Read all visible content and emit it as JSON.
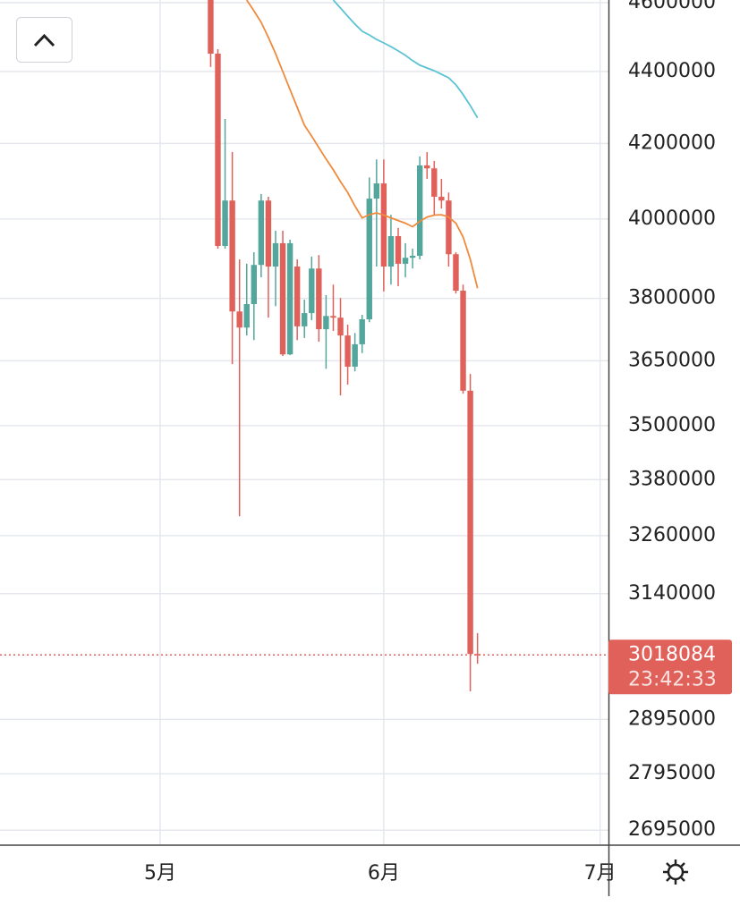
{
  "chart_data": {
    "type": "candlestick",
    "log": true,
    "grid": true,
    "ylim": [
      2669000,
      4608000
    ],
    "yticks": [
      4600000,
      4400000,
      4200000,
      4000000,
      3800000,
      3650000,
      3500000,
      3380000,
      3260000,
      3140000,
      2895000,
      2795000,
      2695000
    ],
    "categories": [
      null,
      null,
      null,
      null,
      null,
      null,
      null,
      null,
      null,
      null,
      null,
      null,
      null,
      null,
      null,
      null,
      null,
      null,
      null,
      null,
      null,
      null,
      "5月",
      null,
      null,
      null,
      null,
      null,
      null,
      null,
      null,
      null,
      null,
      null,
      null,
      null,
      null,
      null,
      null,
      null,
      null,
      null,
      null,
      null,
      null,
      null,
      null,
      null,
      null,
      null,
      null,
      null,
      null,
      "6月",
      null,
      null,
      null,
      null,
      null,
      null,
      null,
      null,
      null,
      null,
      null,
      null,
      null,
      null,
      null,
      null,
      null,
      null,
      null,
      null,
      null,
      null,
      null,
      null,
      null,
      null,
      null,
      null,
      null,
      "7月"
    ],
    "up_color": "#53a69b",
    "down_color": "#e0605a",
    "open": [
      null,
      null,
      null,
      null,
      null,
      null,
      null,
      null,
      null,
      null,
      null,
      null,
      null,
      null,
      null,
      null,
      null,
      null,
      null,
      null,
      null,
      null,
      null,
      null,
      null,
      null,
      null,
      null,
      null,
      4700000,
      4451000,
      3931000,
      4048000,
      3768000,
      3729000,
      3786000,
      3883000,
      4048000,
      3879000,
      3938000,
      3665000,
      3879000,
      3732000,
      3764000,
      3874000,
      3725000,
      3757000,
      3753000,
      3710000,
      3636000,
      3689000,
      3749000,
      4053000,
      4093000,
      3879000,
      3956000,
      3886000,
      3901000,
      3906000,
      4141000,
      4133000,
      4058000,
      4048000,
      3910000,
      3819000,
      3580000,
      3020000,
      null,
      null,
      null,
      null,
      null,
      null,
      null,
      null,
      null,
      null,
      null,
      null,
      null,
      null,
      null,
      null,
      null
    ],
    "high": [
      null,
      null,
      null,
      null,
      null,
      null,
      null,
      null,
      null,
      null,
      null,
      null,
      null,
      null,
      null,
      null,
      null,
      null,
      null,
      null,
      null,
      null,
      null,
      null,
      null,
      null,
      null,
      null,
      null,
      4760000,
      4464000,
      4267000,
      4177000,
      3897000,
      3886000,
      3915000,
      4065000,
      4058000,
      3970000,
      3970000,
      3947000,
      3897000,
      3797000,
      3904000,
      3908000,
      3808000,
      3834000,
      3801000,
      3736000,
      3716000,
      3760000,
      4109000,
      4157000,
      4157000,
      4011000,
      3977000,
      3938000,
      3924000,
      4165000,
      4177000,
      4153000,
      4105000,
      4069000,
      3915000,
      3834000,
      3619000,
      3061000,
      null,
      null,
      null,
      null,
      null,
      null,
      null,
      null,
      null,
      null,
      null,
      null,
      null,
      null,
      null,
      null,
      null
    ],
    "low": [
      null,
      null,
      null,
      null,
      null,
      null,
      null,
      null,
      null,
      null,
      null,
      null,
      null,
      null,
      null,
      null,
      null,
      null,
      null,
      null,
      null,
      null,
      null,
      null,
      null,
      null,
      null,
      null,
      null,
      4413000,
      3924000,
      3924000,
      3642000,
      3301000,
      3710000,
      3699000,
      3852000,
      3753000,
      3781000,
      3661000,
      3663000,
      3699000,
      3704000,
      3747000,
      3695000,
      3631000,
      3721000,
      3569000,
      3594000,
      3625000,
      3668000,
      3742000,
      3879000,
      3817000,
      3834000,
      3830000,
      3852000,
      3874000,
      3897000,
      4105000,
      4011000,
      4027000,
      3879000,
      3812000,
      3573000,
      2948000,
      3001000,
      null,
      null,
      null,
      null,
      null,
      null,
      null,
      null,
      null,
      null,
      null,
      null,
      null,
      null,
      null,
      null,
      null
    ],
    "close": [
      null,
      null,
      null,
      null,
      null,
      null,
      null,
      null,
      null,
      null,
      null,
      null,
      null,
      null,
      null,
      null,
      null,
      null,
      null,
      null,
      null,
      null,
      null,
      null,
      null,
      null,
      null,
      null,
      null,
      4451000,
      3931000,
      4048000,
      3768000,
      3729000,
      3786000,
      3883000,
      4048000,
      3879000,
      3938000,
      3665000,
      3938000,
      3732000,
      3764000,
      3874000,
      3725000,
      3757000,
      3753000,
      3710000,
      3636000,
      3689000,
      3749000,
      4053000,
      4093000,
      3879000,
      3956000,
      3886000,
      3901000,
      3906000,
      4141000,
      4133000,
      4058000,
      4048000,
      3910000,
      3819000,
      3580000,
      3020000,
      3018084,
      null,
      null,
      null,
      null,
      null,
      null,
      null,
      null,
      null,
      null,
      null,
      null,
      null,
      null,
      null,
      null,
      null
    ],
    "lines": [
      {
        "color": "#ef8a3c",
        "values": [
          null,
          null,
          null,
          null,
          null,
          null,
          null,
          null,
          null,
          null,
          null,
          null,
          null,
          null,
          null,
          null,
          null,
          null,
          null,
          null,
          null,
          null,
          null,
          null,
          null,
          null,
          null,
          null,
          null,
          null,
          null,
          null,
          null,
          null,
          4608000,
          4576000,
          4542000,
          4498000,
          4451000,
          4400000,
          4349000,
          4299000,
          4250000,
          4220000,
          4189000,
          4158000,
          4129000,
          4098000,
          4069000,
          4034000,
          4003000,
          4011000,
          4016000,
          4010000,
          4003000,
          3996000,
          3989000,
          3980000,
          3994000,
          4005000,
          4010000,
          4011000,
          4005000,
          3989000,
          3954000,
          3897000,
          3825000,
          null,
          null,
          null,
          null,
          null,
          null,
          null,
          null,
          null,
          null,
          null,
          null,
          null,
          null,
          null,
          null,
          null
        ]
      },
      {
        "color": "#5cc3d4",
        "values": [
          null,
          null,
          null,
          null,
          null,
          null,
          null,
          null,
          null,
          null,
          null,
          null,
          null,
          null,
          null,
          null,
          null,
          null,
          null,
          null,
          null,
          null,
          null,
          null,
          null,
          null,
          null,
          null,
          null,
          null,
          null,
          null,
          null,
          null,
          null,
          null,
          null,
          null,
          null,
          null,
          null,
          null,
          null,
          null,
          null,
          null,
          4608000,
          4584000,
          4560000,
          4537000,
          4516000,
          4505000,
          4492000,
          4482000,
          4471000,
          4459000,
          4446000,
          4431000,
          4418000,
          4410000,
          4402000,
          4392000,
          4382000,
          4362000,
          4335000,
          4304000,
          4270000,
          null,
          null,
          null,
          null,
          null,
          null,
          null,
          null,
          null,
          null,
          null,
          null,
          null,
          null,
          null,
          null,
          null
        ]
      }
    ],
    "last_price_label": "3018084",
    "countdown": "23:42:33"
  }
}
